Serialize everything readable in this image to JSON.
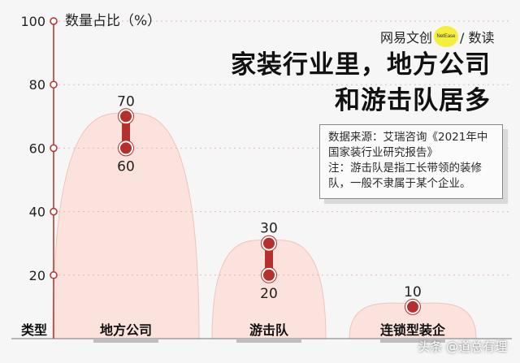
{
  "brand": {
    "text_left": "网易文创",
    "badge": "NetEase",
    "text_right": "/ 数读"
  },
  "headline": {
    "line1": "家装行业里，地方公司",
    "line2": "和游击队居多"
  },
  "note": {
    "source": "数据来源：艾瑞咨询《2021年中国家装行业研究报告》",
    "remark": "注：游击队是指工长带领的装修队，一般不隶属于某个企业。"
  },
  "watermark": "头条 @道总有理",
  "colors": {
    "accent": "#b5302c",
    "mountain": "#fbe2dc",
    "axis": "#b5302c"
  },
  "chart_data": {
    "type": "range",
    "ylabel": "数量占比（%）",
    "xlabel": "类型",
    "ylim": [
      0,
      100
    ],
    "yticks": [
      20,
      40,
      60,
      80,
      100
    ],
    "categories": [
      "地方公司",
      "游击队",
      "连锁型装企"
    ],
    "ranges": [
      {
        "low": 60,
        "high": 70,
        "low_label": "60",
        "high_label": "70"
      },
      {
        "low": 20,
        "high": 30,
        "low_label": "20",
        "high_label": "30"
      },
      {
        "low": 10,
        "high": 10,
        "low_label": "",
        "high_label": "10"
      }
    ]
  }
}
